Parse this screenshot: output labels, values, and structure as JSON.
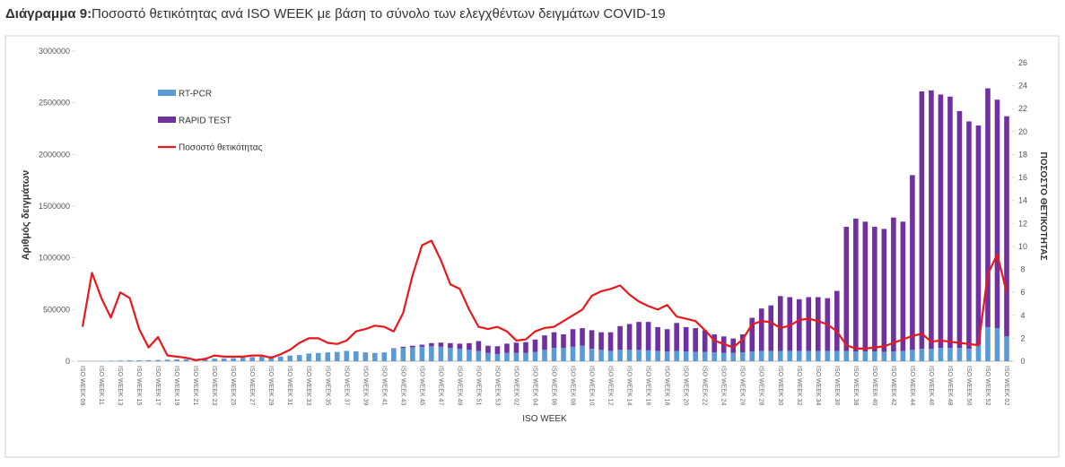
{
  "chart_data": {
    "type": "bar_line",
    "title_label": "Διάγραμμα 9:",
    "title": "Ποσοστό θετικότητας ανά ISO WEEK με βάση το σύνολο των ελεγχθέντων δειγμάτων COVID-19",
    "ylabel": "Αριθμός δειγμάτων",
    "y2label": "ΠΟΣΟΣΤΟ ΘΕΤΙΚΟΤΗΤΑΣ",
    "xlabel": "ISO WEEK",
    "categories": [
      "ISO WEEK 09",
      null,
      "ISO WEEK 11",
      null,
      "ISO WEEK 13",
      null,
      "ISO WEEK 15",
      null,
      "ISO WEEK 17",
      null,
      "ISO WEEK 19",
      null,
      "ISO WEEK 21",
      null,
      "ISO WEEK 23",
      null,
      "ISO WEEK 25",
      null,
      "ISO WEEK 27",
      null,
      "ISO WEEK 29",
      null,
      "ISO WEEK 31",
      null,
      "ISO WEEK 33",
      null,
      "ISO WEEK 35",
      null,
      "ISO WEEK 37",
      null,
      "ISO WEEK 39",
      null,
      "ISO WEEK 41",
      null,
      "ISO WEEK 43",
      null,
      "ISO WEEK 45",
      null,
      "ISO WEEK 47",
      null,
      "ISO WEEK 49",
      null,
      "ISO WEEK 51",
      null,
      "ISO WEEK 53",
      null,
      "ISO WEEK 02",
      null,
      "ISO WEEK 04",
      null,
      "ISO WEEK 06",
      null,
      "ISO WEEK 08",
      null,
      "ISO WEEK 10",
      null,
      "ISO WEEK 12",
      null,
      "ISO WEEK 14",
      null,
      "ISO WEEK 16",
      null,
      "ISO WEEK 18",
      null,
      "ISO WEEK 20",
      null,
      "ISO WEEK 22",
      null,
      "ISO WEEK 24",
      null,
      "ISO WEEK 26",
      null,
      "ISO WEEK 28",
      null,
      "ISO WEEK 30",
      null,
      "ISO WEEK 32",
      null,
      "ISO WEEK 34",
      null,
      "ISO WEEK 36",
      null,
      "ISO WEEK 38",
      null,
      "ISO WEEK 40",
      null,
      "ISO WEEK 42",
      null,
      "ISO WEEK 44",
      null,
      "ISO WEEK 46",
      null,
      "ISO WEEK 48",
      null,
      "ISO WEEK 50",
      null,
      "ISO WEEK 52",
      null,
      "ISO WEEK 02"
    ],
    "series": [
      {
        "name": "RT-PCR",
        "type": "bar",
        "color": "#5b9bd5",
        "values": [
          0,
          1000,
          3000,
          5000,
          7000,
          8000,
          9000,
          10000,
          12000,
          15000,
          18000,
          20000,
          20000,
          22000,
          25000,
          28000,
          30000,
          35000,
          40000,
          45000,
          50000,
          45000,
          55000,
          60000,
          75000,
          80000,
          85000,
          90000,
          100000,
          95000,
          85000,
          80000,
          85000,
          120000,
          130000,
          135000,
          140000,
          145000,
          140000,
          130000,
          120000,
          110000,
          100000,
          80000,
          70000,
          80000,
          80000,
          80000,
          90000,
          110000,
          130000,
          130000,
          140000,
          150000,
          120000,
          110000,
          100000,
          110000,
          110000,
          110000,
          105000,
          100000,
          95000,
          100000,
          95000,
          90000,
          90000,
          85000,
          80000,
          80000,
          85000,
          95000,
          100000,
          100000,
          100000,
          100000,
          100000,
          100000,
          100000,
          100000,
          100000,
          100000,
          95000,
          95000,
          95000,
          90000,
          95000,
          100000,
          110000,
          120000,
          120000,
          130000,
          130000,
          130000,
          120000,
          160000,
          330000,
          320000,
          240000
        ]
      },
      {
        "name": "RAPID TEST",
        "type": "bar",
        "color": "#7030a0",
        "values": [
          0,
          0,
          0,
          0,
          0,
          0,
          0,
          0,
          0,
          0,
          0,
          0,
          0,
          0,
          0,
          0,
          0,
          0,
          0,
          0,
          0,
          0,
          0,
          0,
          0,
          0,
          0,
          0,
          0,
          0,
          0,
          0,
          0,
          5000,
          10000,
          15000,
          20000,
          30000,
          40000,
          45000,
          50000,
          65000,
          95000,
          70000,
          75000,
          90000,
          100000,
          105000,
          120000,
          140000,
          150000,
          130000,
          170000,
          170000,
          180000,
          170000,
          180000,
          230000,
          250000,
          270000,
          275000,
          230000,
          215000,
          270000,
          235000,
          230000,
          210000,
          175000,
          160000,
          140000,
          175000,
          325000,
          410000,
          440000,
          530000,
          520000,
          500000,
          520000,
          520000,
          510000,
          580000,
          1200000,
          1285000,
          1255000,
          1205000,
          1190000,
          1295000,
          1250000,
          1690000,
          2490000,
          2500000,
          2450000,
          2430000,
          2290000,
          2200000,
          2120000,
          2310000,
          2210000,
          2130000
        ]
      },
      {
        "name": "Ποσοστό θετικότητας",
        "type": "line",
        "axis": "y2",
        "color": "#e8191c",
        "values": [
          3.0,
          7.7,
          5.5,
          3.8,
          6.0,
          5.5,
          2.8,
          1.2,
          2.1,
          0.5,
          0.4,
          0.3,
          0.1,
          0.2,
          0.5,
          0.4,
          0.4,
          0.4,
          0.5,
          0.5,
          0.3,
          0.6,
          1.0,
          1.6,
          2.0,
          2.0,
          1.6,
          1.5,
          1.8,
          2.6,
          2.8,
          3.1,
          3.0,
          2.6,
          4.2,
          7.5,
          10.1,
          10.5,
          8.8,
          6.7,
          6.3,
          4.5,
          3.0,
          2.8,
          3.0,
          2.6,
          1.8,
          1.9,
          2.6,
          2.9,
          3.0,
          3.5,
          4.0,
          4.5,
          5.7,
          6.1,
          6.3,
          6.6,
          5.8,
          5.2,
          4.8,
          4.5,
          4.9,
          3.9,
          3.7,
          3.5,
          2.7,
          1.8,
          1.5,
          1.2,
          1.9,
          3.2,
          3.5,
          3.4,
          2.9,
          3.1,
          3.6,
          3.7,
          3.5,
          3.2,
          2.6,
          1.4,
          1.1,
          1.1,
          1.2,
          1.3,
          1.6,
          1.9,
          2.2,
          2.4,
          1.7,
          1.8,
          1.7,
          1.6,
          1.5,
          1.4,
          7.6,
          9.3,
          6.0
        ]
      }
    ],
    "ylim": [
      0,
      3000000
    ],
    "yticks": [
      0,
      500000,
      1000000,
      1500000,
      2000000,
      2500000,
      3000000
    ],
    "y2lim": [
      0,
      26
    ],
    "y2ticks": [
      0,
      2,
      4,
      6,
      8,
      10,
      12,
      14,
      16,
      18,
      20,
      22,
      24,
      26
    ]
  }
}
